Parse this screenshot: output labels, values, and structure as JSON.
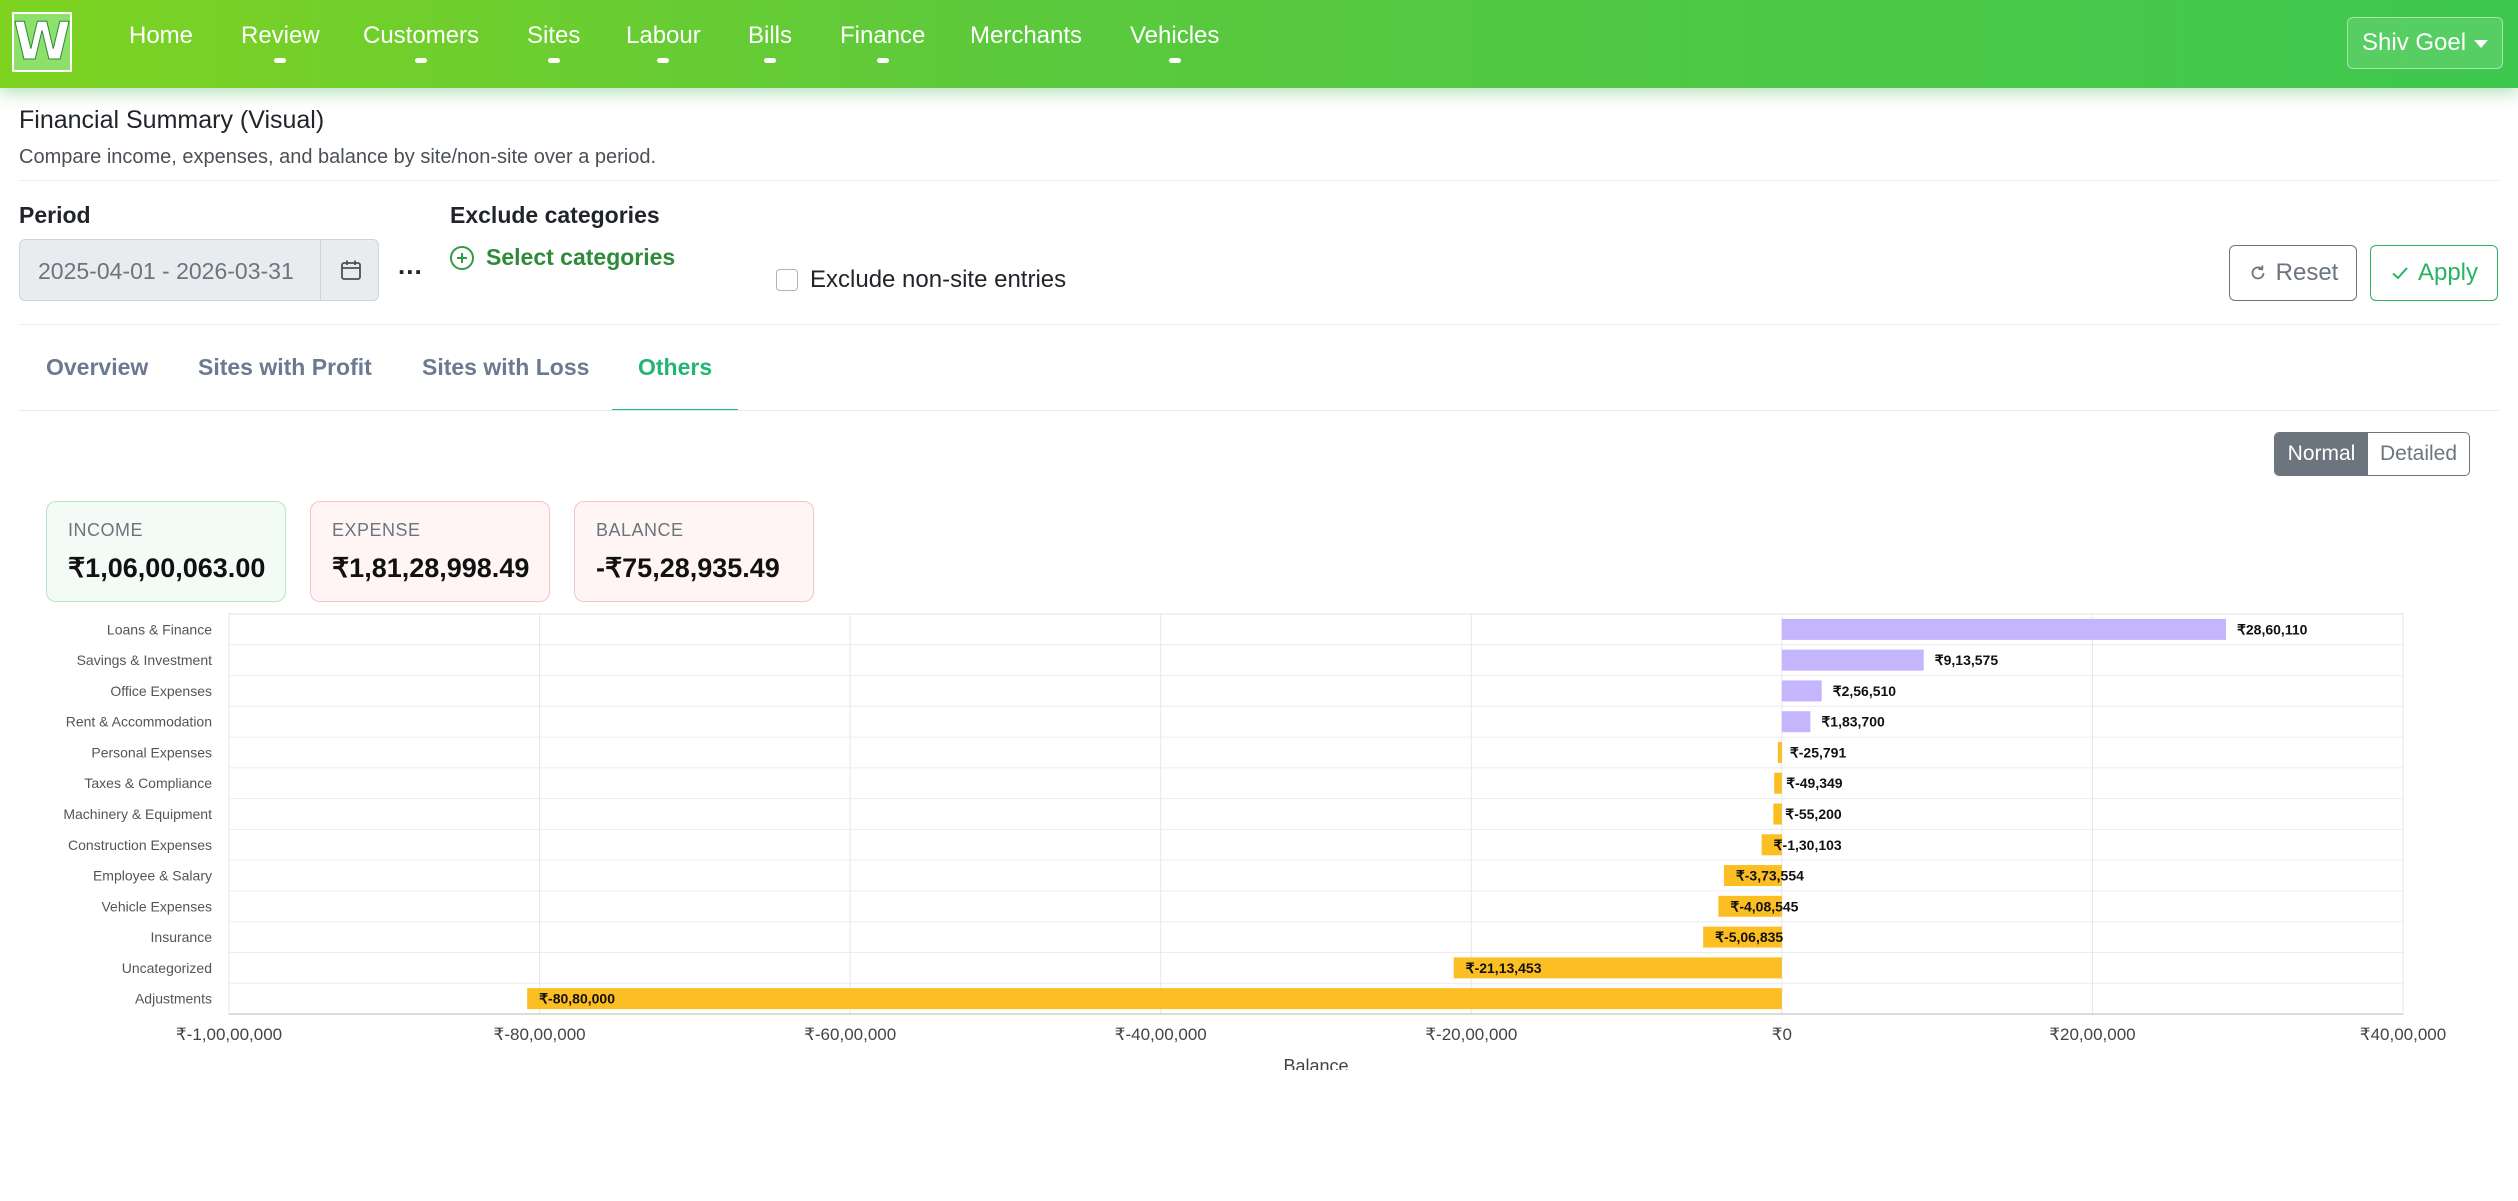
{
  "nav": {
    "logo": "W",
    "items": [
      "Home",
      "Review",
      "Customers",
      "Sites",
      "Labour",
      "Bills",
      "Finance",
      "Merchants",
      "Vehicles"
    ],
    "user": "Shiv Goel"
  },
  "header": {
    "title": "Financial Summary (Visual)",
    "subtitle": "Compare income, expenses, and balance by site/non-site over a period."
  },
  "filters": {
    "period_label": "Period",
    "period_value": "2025-04-01 - 2026-03-31",
    "more": "...",
    "exclude_label": "Exclude categories",
    "select_categories": "Select categories",
    "exclude_nonsite": "Exclude non-site entries",
    "reset": "Reset",
    "apply": "Apply"
  },
  "tabs": [
    "Overview",
    "Sites with Profit",
    "Sites with Loss",
    "Others"
  ],
  "view_toggle": {
    "normal": "Normal",
    "detailed": "Detailed",
    "selected": "Normal"
  },
  "summary": {
    "income": {
      "label": "INCOME",
      "value": "₹1,06,00,063.00"
    },
    "expense": {
      "label": "EXPENSE",
      "value": "₹1,81,28,998.49"
    },
    "balance": {
      "label": "BALANCE",
      "value": "-₹75,28,935.49"
    }
  },
  "colors": {
    "positive": "#c4b5fd",
    "negative": "#fbbf24",
    "accent": "#22b573"
  },
  "chart_data": {
    "type": "bar",
    "orientation": "horizontal",
    "xlabel": "Balance",
    "xlim": [
      -10000000,
      4000000
    ],
    "x_ticks": [
      -10000000,
      -8000000,
      -6000000,
      -4000000,
      -2000000,
      0,
      2000000,
      4000000
    ],
    "x_tick_labels": [
      "₹-1,00,00,000",
      "₹-80,00,000",
      "₹-60,00,000",
      "₹-40,00,000",
      "₹-20,00,000",
      "₹0",
      "₹20,00,000",
      "₹40,00,000"
    ],
    "categories": [
      "Loans & Finance",
      "Savings & Investment",
      "Office Expenses",
      "Rent & Accommodation",
      "Personal Expenses",
      "Taxes & Compliance",
      "Machinery & Equipment",
      "Construction Expenses",
      "Employee & Salary",
      "Vehicle Expenses",
      "Insurance",
      "Uncategorized",
      "Adjustments"
    ],
    "values": [
      2860110,
      913575,
      256510,
      183700,
      -25791,
      -49349,
      -55200,
      -130103,
      -373554,
      -408545,
      -506835,
      -2113453,
      -8080000
    ],
    "value_labels": [
      "₹28,60,110",
      "₹9,13,575",
      "₹2,56,510",
      "₹1,83,700",
      "₹-25,791",
      "₹-49,349",
      "₹-55,200",
      "₹-1,30,103",
      "₹-3,73,554",
      "₹-4,08,545",
      "₹-5,06,835",
      "₹-21,13,453",
      "₹-80,80,000"
    ],
    "grid": true
  }
}
